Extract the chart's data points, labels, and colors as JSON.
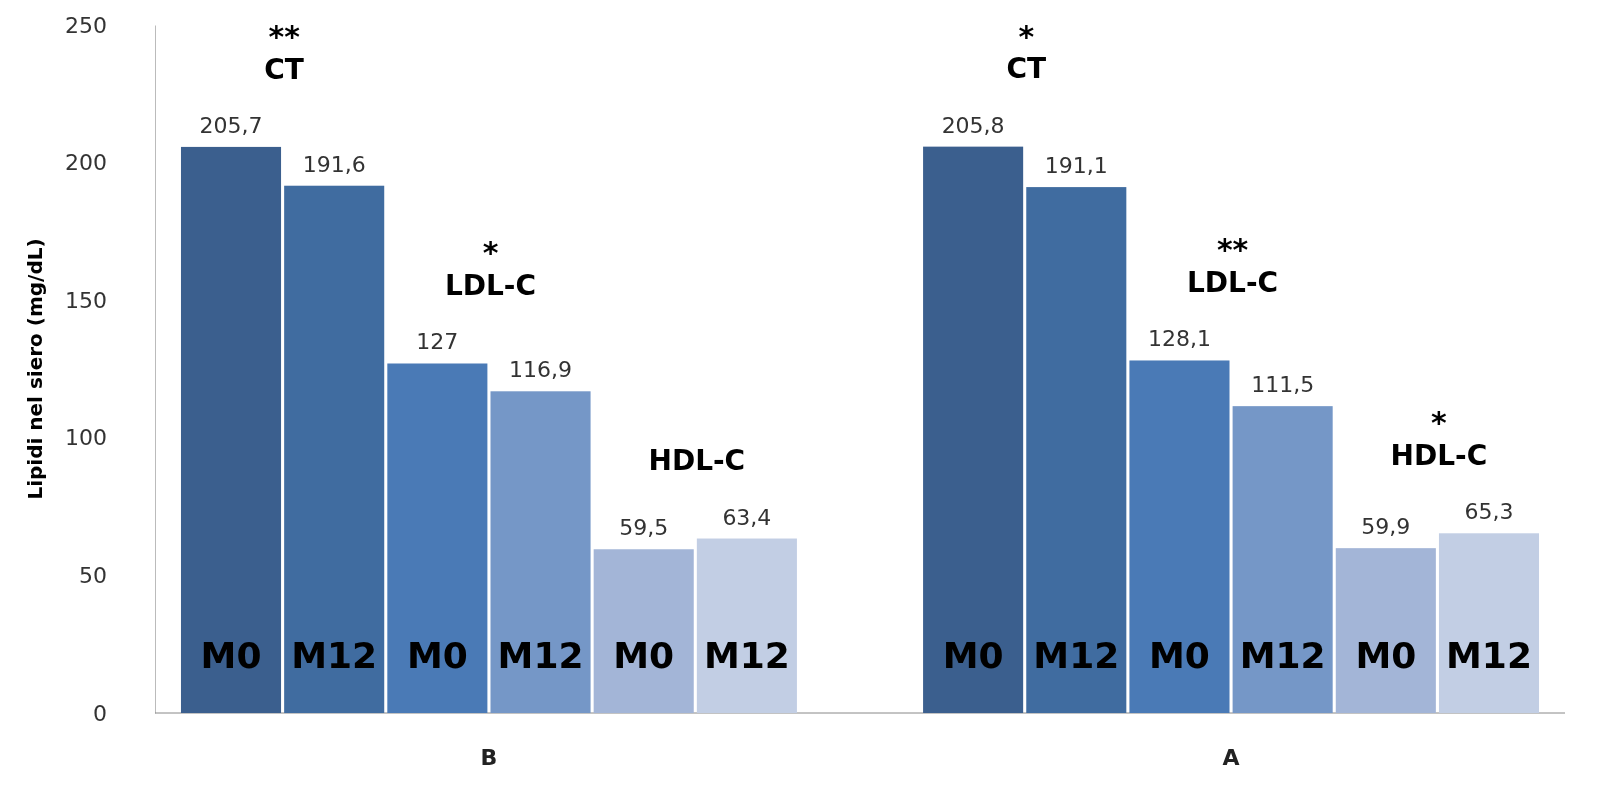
{
  "chart_data": {
    "type": "bar",
    "ylabel": "Lipidi nel siero (mg/dL)",
    "categories": [
      "B",
      "A"
    ],
    "series": [
      {
        "name": "M0",
        "color": "#3b5f8e",
        "values": [
          205.7,
          205.8
        ],
        "value_labels": [
          "205,7",
          "205,8"
        ]
      },
      {
        "name": "M12",
        "color": "#406ca0",
        "values": [
          191.6,
          191.1
        ],
        "value_labels": [
          "191,6",
          "191,1"
        ]
      },
      {
        "name": "M0",
        "color": "#4a7ab6",
        "values": [
          127,
          128.1
        ],
        "value_labels": [
          "127",
          "128,1"
        ]
      },
      {
        "name": "M12",
        "color": "#7597c7",
        "values": [
          116.9,
          111.5
        ],
        "value_labels": [
          "116,9",
          "111,5"
        ]
      },
      {
        "name": "M0",
        "color": "#a3b5d7",
        "values": [
          59.5,
          59.9
        ],
        "value_labels": [
          "59,5",
          "59,9"
        ]
      },
      {
        "name": "M12",
        "color": "#c2cee4",
        "values": [
          63.4,
          65.3
        ],
        "value_labels": [
          "63,4",
          "65,3"
        ]
      }
    ],
    "ylim": [
      0,
      250
    ],
    "yticks": [
      0,
      50,
      100,
      150,
      200,
      250
    ],
    "grid": false,
    "annotations": [
      "**",
      "CT",
      "*",
      "LDL-C",
      "HDL-C",
      "*",
      "CT",
      "**",
      "LDL-C",
      "*",
      "HDL-C"
    ]
  }
}
